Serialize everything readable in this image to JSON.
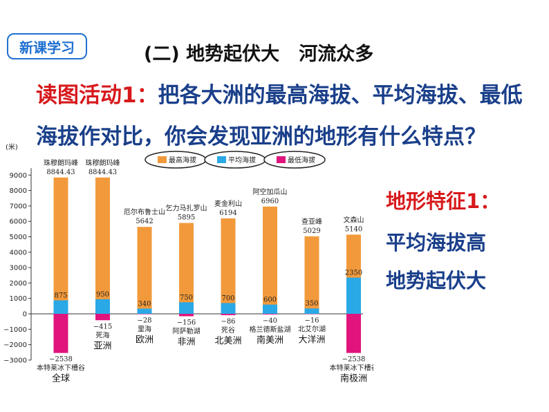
{
  "badge": "新课学习",
  "section_title": "(二) 地势起伏大   河流众多",
  "activity": {
    "lead": "读图活动1：",
    "text": "把各大洲的最高海拔、平均海拔、最低海拔作对比，你会发现亚洲的地形有什么特点？"
  },
  "feature": {
    "heading": "地形特征1：",
    "points": [
      "平均海拔高",
      "地势起伏大"
    ]
  },
  "chart_data": {
    "type": "bar",
    "ylabel": "(米)",
    "ylim": [
      -3000,
      9000
    ],
    "yticks": [
      9000,
      8000,
      7000,
      6000,
      5000,
      4000,
      3000,
      2000,
      1000,
      0,
      -1000,
      -2000,
      -3000
    ],
    "legend": [
      "最高海拔",
      "平均海拔",
      "最低海拔"
    ],
    "colors": {
      "highest": "#f29a3b",
      "average": "#2ba8e6",
      "lowest": "#e0147c"
    },
    "categories": [
      {
        "name": "全球",
        "high_name": "珠穆朗玛峰",
        "high": 8844.43,
        "high_label": "8844.43",
        "avg": 875,
        "low": -2538,
        "low_label": "−2538",
        "low_name": "本特莱冰下槽谷"
      },
      {
        "name": "亚洲",
        "high_name": "珠穆朗玛峰",
        "high": 8844.43,
        "high_label": "8844.43",
        "avg": 950,
        "low": -415,
        "low_label": "−415",
        "low_name": "死海"
      },
      {
        "name": "欧洲",
        "high_name": "厄尔布鲁士山",
        "high": 5642,
        "high_label": "5642",
        "avg": 340,
        "low": -28,
        "low_label": "−28",
        "low_name": "里海"
      },
      {
        "name": "非洲",
        "high_name": "乞力马扎罗山",
        "high": 5895,
        "high_label": "5895",
        "avg": 750,
        "low": -156,
        "low_label": "−156",
        "low_name": "阿萨勒湖"
      },
      {
        "name": "北美洲",
        "high_name": "麦金利山",
        "high": 6194,
        "high_label": "6194",
        "avg": 700,
        "low": -86,
        "low_label": "−86",
        "low_name": "死谷"
      },
      {
        "name": "南美洲",
        "high_name": "阿空加瓜山",
        "high": 6960,
        "high_label": "6960",
        "avg": 600,
        "low": -40,
        "low_label": "−40",
        "low_name": "格兰德斯盐湖"
      },
      {
        "name": "大洋洲",
        "high_name": "查亚峰",
        "high": 5029,
        "high_label": "5029",
        "avg": 350,
        "low": -16,
        "low_label": "−16",
        "low_name": "北艾尔湖"
      },
      {
        "name": "南极洲",
        "high_name": "文森山",
        "high": 5140,
        "high_label": "5140",
        "avg": 2350,
        "low": -2538,
        "low_label": "−2538",
        "low_name": "本特莱冰下槽谷"
      }
    ]
  }
}
